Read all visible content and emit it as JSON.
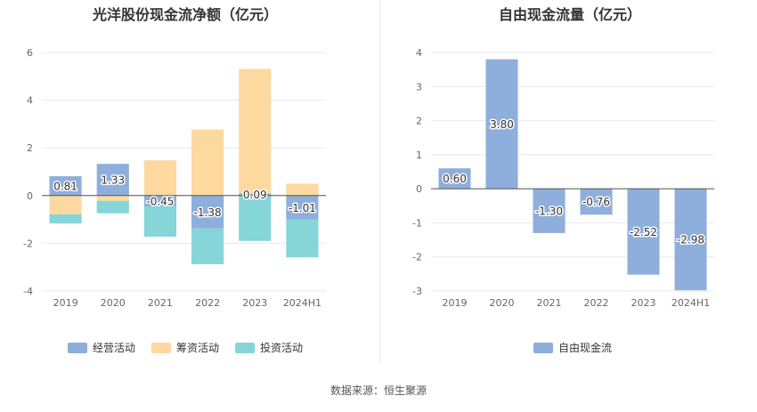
{
  "chart_data": [
    {
      "type": "bar",
      "stacked": true,
      "title": "光洋股份现金流净额（亿元）",
      "categories": [
        "2019",
        "2020",
        "2021",
        "2022",
        "2023",
        "2024H1"
      ],
      "ylim": [
        -4,
        6
      ],
      "yticks": [
        -4,
        -2,
        0,
        2,
        4,
        6
      ],
      "grid": true,
      "legend_position": "bottom",
      "series": [
        {
          "name": "经营活动",
          "color": "#8eaedc",
          "values": [
            0.81,
            1.33,
            -0.45,
            -1.38,
            0.09,
            -1.01
          ],
          "labels": [
            "0.81",
            "1.33",
            "-0.45",
            "-1.38",
            "0.09",
            "-1.01"
          ]
        },
        {
          "name": "筹资活动",
          "color": "#fdd9a0",
          "values": [
            -0.78,
            -0.22,
            1.48,
            2.77,
            5.22,
            0.5
          ]
        },
        {
          "name": "投资活动",
          "color": "#86d5d8",
          "values": [
            -0.39,
            -0.52,
            -1.27,
            -1.5,
            -1.9,
            -1.58
          ]
        }
      ]
    },
    {
      "type": "bar",
      "title": "自由现金流量（亿元）",
      "categories": [
        "2019",
        "2020",
        "2021",
        "2022",
        "2023",
        "2024H1"
      ],
      "ylim": [
        -3,
        4
      ],
      "yticks": [
        -3,
        -2,
        -1,
        0,
        1,
        2,
        3,
        4
      ],
      "grid": true,
      "legend_position": "bottom",
      "series": [
        {
          "name": "自由现金流",
          "color": "#8eaedc",
          "values": [
            0.6,
            3.8,
            -1.3,
            -0.76,
            -2.52,
            -2.98
          ],
          "labels": [
            "0.60",
            "3.80",
            "-1.30",
            "-0.76",
            "-2.52",
            "-2.98"
          ]
        }
      ]
    }
  ],
  "footer": {
    "source": "数据来源：恒生聚源"
  }
}
